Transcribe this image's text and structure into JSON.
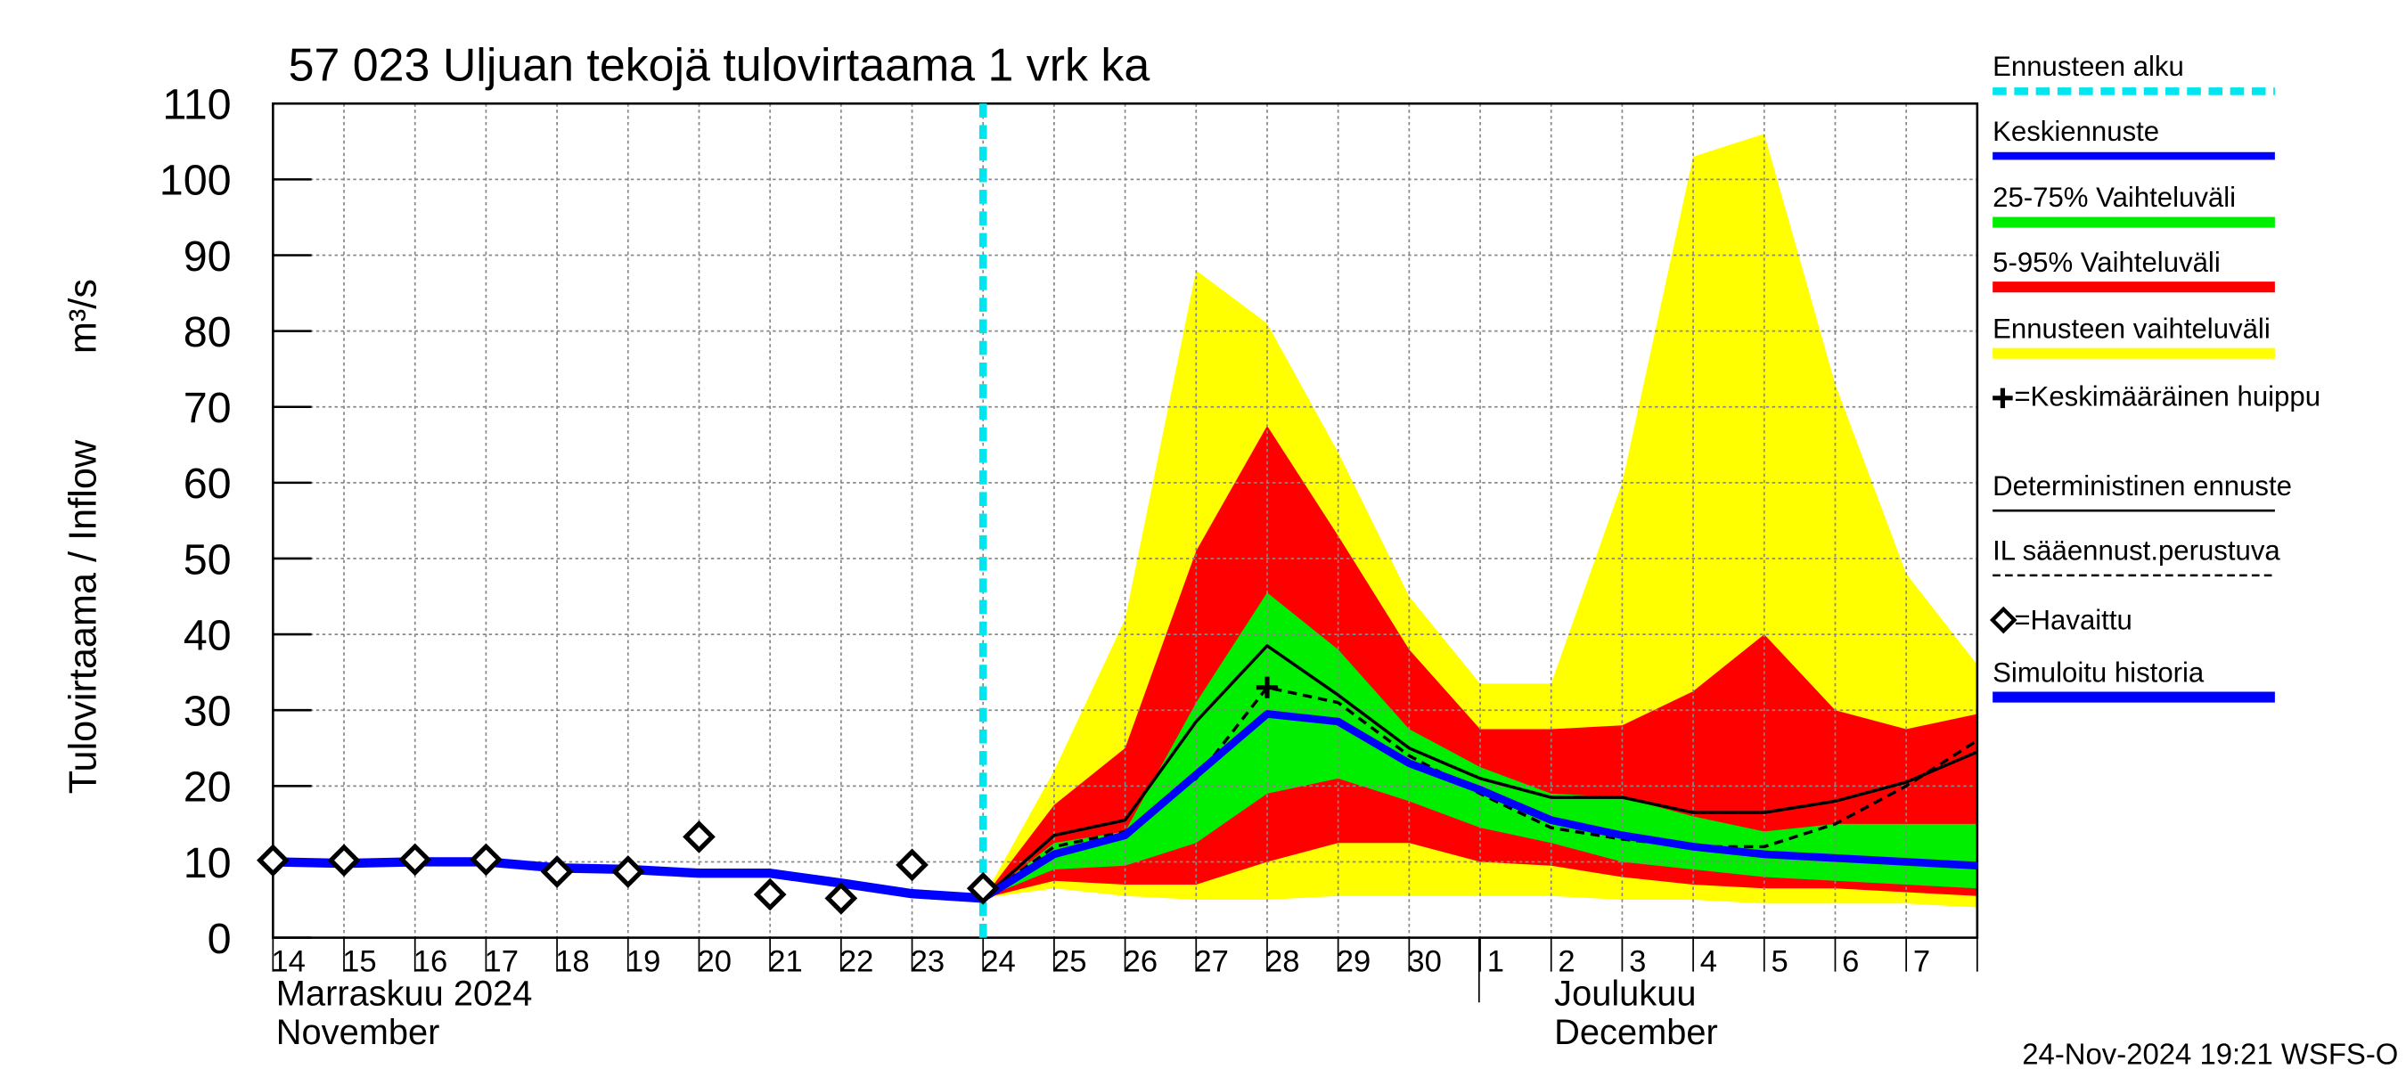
{
  "chart_data": {
    "type": "hydrograph",
    "title": "57 023 Uljuan tekojä tulovirtaama 1 vrk ka",
    "y_label": "Tulovirtaama / Inflow",
    "y_unit": "m³/s",
    "timestamp": "24-Nov-2024 19:21 WSFS-O",
    "month_labels": [
      [
        "Marraskuu 2024",
        "November"
      ],
      [
        "Joulukuu",
        "December"
      ]
    ],
    "categories": [
      "14",
      "15",
      "16",
      "17",
      "18",
      "19",
      "20",
      "21",
      "22",
      "23",
      "24",
      "25",
      "26",
      "27",
      "28",
      "29",
      "30",
      "1",
      "2",
      "3",
      "4",
      "5",
      "6",
      "7",
      null
    ],
    "ylim": [
      0,
      110
    ],
    "yticks": [
      0,
      10,
      20,
      30,
      40,
      50,
      60,
      70,
      80,
      90,
      100,
      110
    ],
    "grid": true,
    "forecast_start": {
      "name": "Ennusteen alku",
      "color": "#00e5ee",
      "category": "24"
    },
    "series": [
      {
        "name": "Keskiennuste",
        "style": "line",
        "color": "#0000ff",
        "values": [
          null,
          null,
          null,
          null,
          null,
          null,
          null,
          null,
          null,
          null,
          5.2,
          11,
          13.5,
          21.5,
          29.5,
          28.5,
          23,
          19.5,
          15.5,
          13.5,
          12,
          11,
          10.5,
          10,
          9.5
        ]
      },
      {
        "name": "25-75% Vaihteluväli",
        "style": "band",
        "color": "#00ee00",
        "upper": [
          null,
          null,
          null,
          null,
          null,
          null,
          null,
          null,
          null,
          null,
          5.2,
          12.5,
          14,
          31,
          45.5,
          38,
          27.5,
          22.5,
          19,
          18.5,
          16,
          14,
          15,
          15,
          15
        ],
        "lower": [
          null,
          null,
          null,
          null,
          null,
          null,
          null,
          null,
          null,
          null,
          5.2,
          9,
          9.5,
          12.5,
          19,
          21,
          18,
          14.5,
          12.5,
          10,
          9,
          8,
          7.5,
          7,
          6.5
        ]
      },
      {
        "name": "5-95% Vaihteluväli",
        "style": "band",
        "color": "#ff0000",
        "upper": [
          null,
          null,
          null,
          null,
          null,
          null,
          null,
          null,
          null,
          null,
          5.2,
          17.5,
          25,
          51,
          67.5,
          53,
          38,
          27.5,
          27.5,
          28,
          32.5,
          40,
          30,
          27.5,
          29.5
        ],
        "lower": [
          null,
          null,
          null,
          null,
          null,
          null,
          null,
          null,
          null,
          null,
          5.2,
          7.5,
          7,
          7,
          10,
          12.5,
          12.5,
          10,
          9.5,
          8,
          7,
          6.5,
          6.5,
          6,
          5.5
        ]
      },
      {
        "name": "Ennusteen vaihteluväli",
        "style": "band",
        "color": "#ffff00",
        "upper": [
          null,
          null,
          null,
          null,
          null,
          null,
          null,
          null,
          null,
          null,
          5.2,
          22,
          42,
          88,
          81,
          64,
          45,
          33.5,
          33.5,
          60,
          103,
          106,
          73,
          48,
          36
        ],
        "lower": [
          null,
          null,
          null,
          null,
          null,
          null,
          null,
          null,
          null,
          null,
          5.2,
          6.5,
          5.5,
          5,
          5,
          5.5,
          5.5,
          5.5,
          5.5,
          5,
          5,
          4.5,
          4.5,
          4.5,
          4
        ]
      },
      {
        "name": "=Keskimääräinen huippu",
        "style": "peak",
        "color": "#000000",
        "values": [
          null,
          null,
          null,
          null,
          null,
          null,
          null,
          null,
          null,
          null,
          null,
          null,
          null,
          null,
          33,
          null,
          null,
          null,
          null,
          null,
          null,
          null,
          null,
          null,
          null
        ]
      },
      {
        "name": "Deterministinen ennuste",
        "style": "thin",
        "color": "#000000",
        "values": [
          null,
          null,
          null,
          null,
          null,
          null,
          null,
          null,
          null,
          null,
          5.2,
          13.5,
          15.5,
          28.5,
          38.5,
          32,
          25,
          21,
          18.5,
          18.5,
          16.5,
          16.5,
          18,
          20.5,
          24.5
        ]
      },
      {
        "name": "IL sääennust.perustuva",
        "style": "dashed",
        "color": "#000000",
        "values": [
          null,
          null,
          null,
          null,
          null,
          null,
          null,
          null,
          null,
          null,
          5.2,
          12,
          14,
          21,
          33,
          31,
          24,
          19,
          14.5,
          13,
          12,
          12,
          15,
          20,
          26
        ]
      },
      {
        "name": "=Havaittu",
        "style": "markers",
        "color": "#000000",
        "values": [
          10.2,
          10.2,
          10.3,
          10.3,
          8.7,
          8.7,
          13.3,
          5.7,
          5.2,
          9.6,
          6.5,
          null,
          null,
          null,
          null,
          null,
          null,
          null,
          null,
          null,
          null,
          null,
          null,
          null,
          null
        ]
      },
      {
        "name": "Simuloitu historia",
        "style": "thick",
        "color": "#0000ff",
        "values": [
          10,
          9.8,
          10,
          10,
          9.2,
          9,
          8.5,
          8.5,
          7.2,
          5.8,
          5.2,
          null,
          null,
          null,
          null,
          null,
          null,
          null,
          null,
          null,
          null,
          null,
          null,
          null,
          null
        ]
      }
    ]
  }
}
